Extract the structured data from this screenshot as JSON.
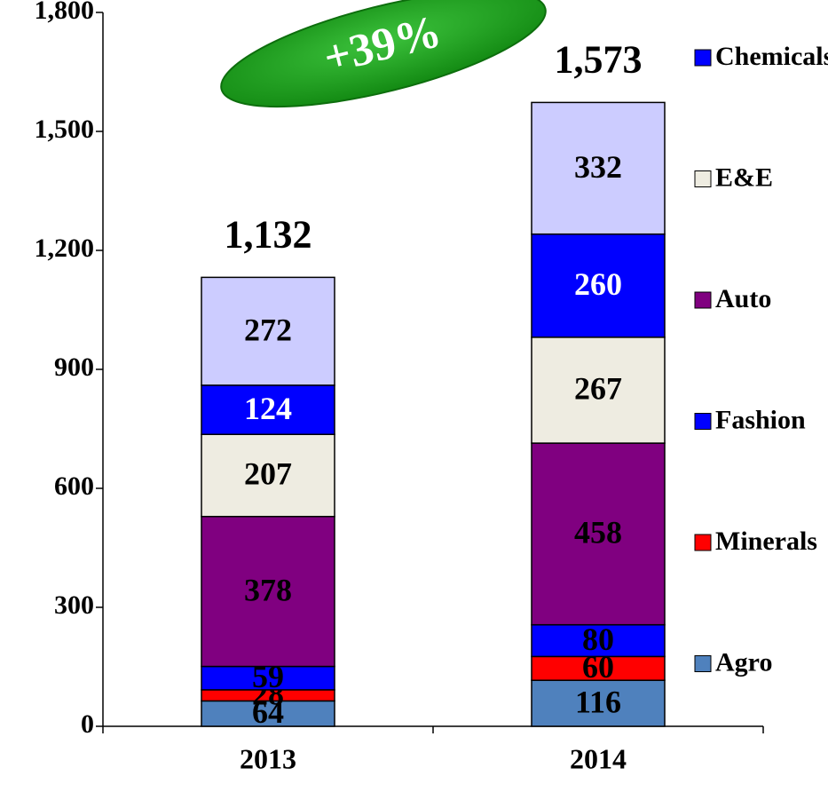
{
  "chart_data": {
    "type": "stacked_bar",
    "annotation": "+39%",
    "categories": [
      "2013",
      "2014"
    ],
    "series": [
      {
        "name": "Agro",
        "color": "#4f81bd",
        "values": [
          64,
          116
        ]
      },
      {
        "name": "Minerals",
        "color": "#ff0000",
        "values": [
          28,
          60
        ]
      },
      {
        "name": "Fashion",
        "color": "#0000ff",
        "values": [
          59,
          80
        ]
      },
      {
        "name": "Auto",
        "color": "#800080",
        "values": [
          378,
          458
        ]
      },
      {
        "name": "E&E",
        "color": "#eeece1",
        "values": [
          207,
          267
        ]
      },
      {
        "name": "Chemicals",
        "color": "#0000ff",
        "label_color": "#ffffff",
        "values": [
          124,
          260
        ]
      },
      {
        "name": null,
        "color": "#ccccff",
        "values": [
          272,
          332
        ]
      }
    ],
    "totals": [
      1132,
      1573
    ],
    "total_labels": [
      "1,132",
      "1,573"
    ],
    "ylim": [
      0,
      1800
    ],
    "yticks": [
      0,
      300,
      600,
      900,
      {
        "value": 1200,
        "label": "1,200"
      },
      {
        "value": 1500,
        "label": "1,500"
      },
      {
        "value": 1800,
        "label": "1,800"
      }
    ],
    "legend": "right"
  }
}
